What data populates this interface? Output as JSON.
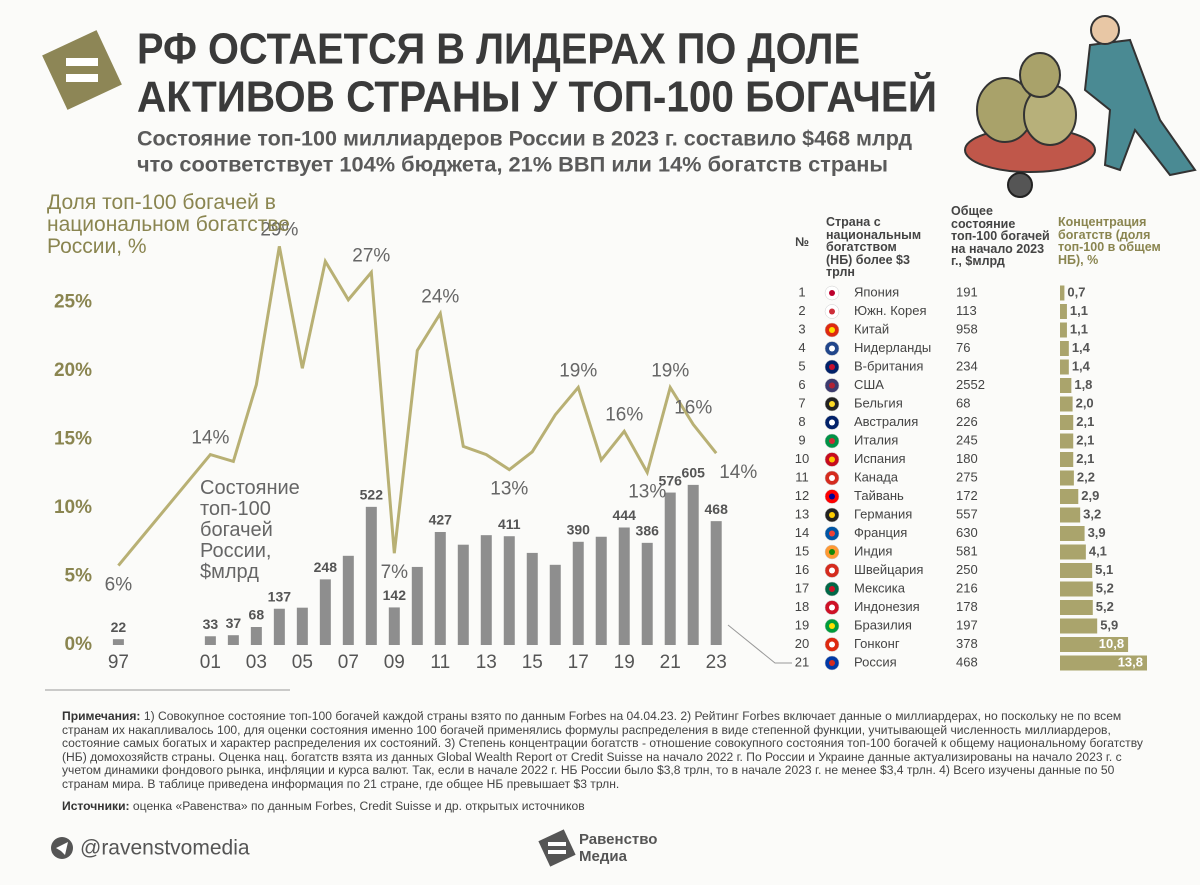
{
  "header": {
    "title_lines": [
      "РФ ОСТАЕТСЯ В ЛИДЕРАХ ПО ДОЛЕ",
      "АКТИВОВ СТРАНЫ У ТОП-100 БОГАЧЕЙ"
    ],
    "subtitle_lines": [
      "Состояние топ-100 миллиардеров России в 2023 г. составило $468 млрд",
      "что соответствует 104% бюджета, 21% ВВП или 14% богатств страны"
    ]
  },
  "chart_data": {
    "type": "combo",
    "x": [
      1997,
      2001,
      2002,
      2003,
      2004,
      2005,
      2006,
      2007,
      2008,
      2009,
      2010,
      2011,
      2012,
      2013,
      2014,
      2015,
      2016,
      2017,
      2018,
      2019,
      2020,
      2021,
      2022,
      2023
    ],
    "xlim": [
      1996.2,
      2023.6
    ],
    "xticks": [
      {
        "value": 1997,
        "label": "97"
      },
      {
        "value": 2001,
        "label": "01"
      },
      {
        "value": 2003,
        "label": "03"
      },
      {
        "value": 2005,
        "label": "05"
      },
      {
        "value": 2007,
        "label": "07"
      },
      {
        "value": 2009,
        "label": "09"
      },
      {
        "value": 2011,
        "label": "11"
      },
      {
        "value": 2013,
        "label": "13"
      },
      {
        "value": 2015,
        "label": "15"
      },
      {
        "value": 2017,
        "label": "17"
      },
      {
        "value": 2019,
        "label": "19"
      },
      {
        "value": 2021,
        "label": "21"
      },
      {
        "value": 2023,
        "label": "23"
      }
    ],
    "ylim": [
      0,
      30
    ],
    "yticks": [
      {
        "value": 0,
        "label": "0%"
      },
      {
        "value": 5,
        "label": "5%"
      },
      {
        "value": 10,
        "label": "10%"
      },
      {
        "value": 15,
        "label": "15%"
      },
      {
        "value": 20,
        "label": "20%"
      },
      {
        "value": 25,
        "label": "25%"
      }
    ],
    "y2lim": [
      0,
      1553
    ],
    "grid": false,
    "series": [
      {
        "name": "Состояние топ-100 богачей России, $млрд",
        "type": "bar",
        "axis": "y2",
        "color": "#8e8e8e",
        "values": [
          22,
          33,
          37,
          68,
          137,
          141,
          248,
          337,
          522,
          142,
          295,
          427,
          379,
          415,
          411,
          348,
          303,
          390,
          409,
          444,
          386,
          576,
          605,
          468
        ],
        "value_labels": [
          "22",
          "33",
          "37",
          "68",
          "137",
          null,
          "248",
          null,
          "522",
          "142",
          null,
          "427",
          null,
          null,
          "411",
          null,
          null,
          "390",
          null,
          "444",
          "386",
          "576",
          "605",
          "468"
        ]
      },
      {
        "name": "Доля топ-100 богачей в национальном богатстве России, %",
        "type": "line",
        "color": "#b8b074",
        "values": [
          5.8,
          13.9,
          13.4,
          19,
          29.1,
          20.2,
          28,
          25.2,
          27.2,
          6.7,
          21.5,
          24.2,
          14.5,
          13.9,
          12.8,
          14.1,
          16.8,
          18.8,
          13.5,
          15.6,
          12.6,
          18.8,
          16.1,
          14.0
        ],
        "value_labels": [
          "6%",
          "14%",
          null,
          null,
          "29%",
          null,
          null,
          null,
          "27%",
          "7%",
          null,
          "24%",
          null,
          null,
          "13%",
          null,
          null,
          "19%",
          null,
          "16%",
          "13%",
          "19%",
          "16%",
          "14%"
        ]
      }
    ]
  },
  "table": {
    "headers": [
      "№",
      "Страна с национальным богатством (НБ) более $3 трлн",
      "Общее состояние топ-100 богачей на начало 2023 г., $млрд",
      "Концентрация богатств (доля топ-100 в общем НБ), %"
    ],
    "bar_color": "#aaa46c",
    "rows": [
      {
        "n": 1,
        "country": "Япония",
        "wealth": 191,
        "concentration": 0.7,
        "concentration_label": "0,7"
      },
      {
        "n": 2,
        "country": "Южн. Корея",
        "wealth": 113,
        "concentration": 1.1,
        "concentration_label": "1,1"
      },
      {
        "n": 3,
        "country": "Китай",
        "wealth": 958,
        "concentration": 1.1,
        "concentration_label": "1,1"
      },
      {
        "n": 4,
        "country": "Нидерланды",
        "wealth": 76,
        "concentration": 1.4,
        "concentration_label": "1,4"
      },
      {
        "n": 5,
        "country": "В-британия",
        "wealth": 234,
        "concentration": 1.4,
        "concentration_label": "1,4"
      },
      {
        "n": 6,
        "country": "США",
        "wealth": 2552,
        "concentration": 1.8,
        "concentration_label": "1,8"
      },
      {
        "n": 7,
        "country": "Бельгия",
        "wealth": 68,
        "concentration": 2.0,
        "concentration_label": "2,0"
      },
      {
        "n": 8,
        "country": "Австралия",
        "wealth": 226,
        "concentration": 2.1,
        "concentration_label": "2,1"
      },
      {
        "n": 9,
        "country": "Италия",
        "wealth": 245,
        "concentration": 2.1,
        "concentration_label": "2,1"
      },
      {
        "n": 10,
        "country": "Испания",
        "wealth": 180,
        "concentration": 2.1,
        "concentration_label": "2,1"
      },
      {
        "n": 11,
        "country": "Канада",
        "wealth": 275,
        "concentration": 2.2,
        "concentration_label": "2,2"
      },
      {
        "n": 12,
        "country": "Тайвань",
        "wealth": 172,
        "concentration": 2.9,
        "concentration_label": "2,9"
      },
      {
        "n": 13,
        "country": "Германия",
        "wealth": 557,
        "concentration": 3.2,
        "concentration_label": "3,2"
      },
      {
        "n": 14,
        "country": "Франция",
        "wealth": 630,
        "concentration": 3.9,
        "concentration_label": "3,9"
      },
      {
        "n": 15,
        "country": "Индия",
        "wealth": 581,
        "concentration": 4.1,
        "concentration_label": "4,1"
      },
      {
        "n": 16,
        "country": "Швейцария",
        "wealth": 250,
        "concentration": 5.1,
        "concentration_label": "5,1"
      },
      {
        "n": 17,
        "country": "Мексика",
        "wealth": 216,
        "concentration": 5.2,
        "concentration_label": "5,2"
      },
      {
        "n": 18,
        "country": "Индонезия",
        "wealth": 178,
        "concentration": 5.2,
        "concentration_label": "5,2"
      },
      {
        "n": 19,
        "country": "Бразилия",
        "wealth": 197,
        "concentration": 5.9,
        "concentration_label": "5,9"
      },
      {
        "n": 20,
        "country": "Гонконг",
        "wealth": 378,
        "concentration": 10.8,
        "concentration_label": "10,8"
      },
      {
        "n": 21,
        "country": "Россия",
        "wealth": 468,
        "concentration": 13.8,
        "concentration_label": "13,8"
      }
    ]
  },
  "notes": {
    "label": "Примечания:",
    "text": "1) Совокупное состояние топ-100 богачей каждой страны взято по данным Forbes на 04.04.23. 2) Рейтинг Forbes включает данные о миллиардерах, но поскольку не по всем странам их накапливалось 100, для оценки состояния именно 100 богачей применялись формулы распределения в виде степенной функции, учитывающей численность миллиардеров, состояние самых богатых и характер распределения их состояний. 3) Степень концентрации богатств - отношение совокупного состояния топ-100 богачей к общему национальному богатству (НБ) домохозяйств страны. Оценка нац. богатств взята из данных Global Wealth Report от Credit Suisse на начало 2022 г. По России и Украине данные актуализированы на начало 2023 г. с учетом динамики фондового рынка, инфляции и курса валют. Так, если в начале 2022 г. НБ России было $3,8 трлн, то в начале 2023 г. не менее $3,4 трлн. 4) Всего изучены данные по 50 странам мира. В таблице приведена информация по 21 стране, где общее НБ превышает $3 трлн."
  },
  "sources": {
    "label": "Источники:",
    "text": "оценка «Равенства» по данным Forbes, Credit Suisse и др. открытых источников"
  },
  "footer": {
    "handle": "@ravenstvomedia",
    "brand_lines": [
      "Равенство",
      "Медиа"
    ]
  }
}
